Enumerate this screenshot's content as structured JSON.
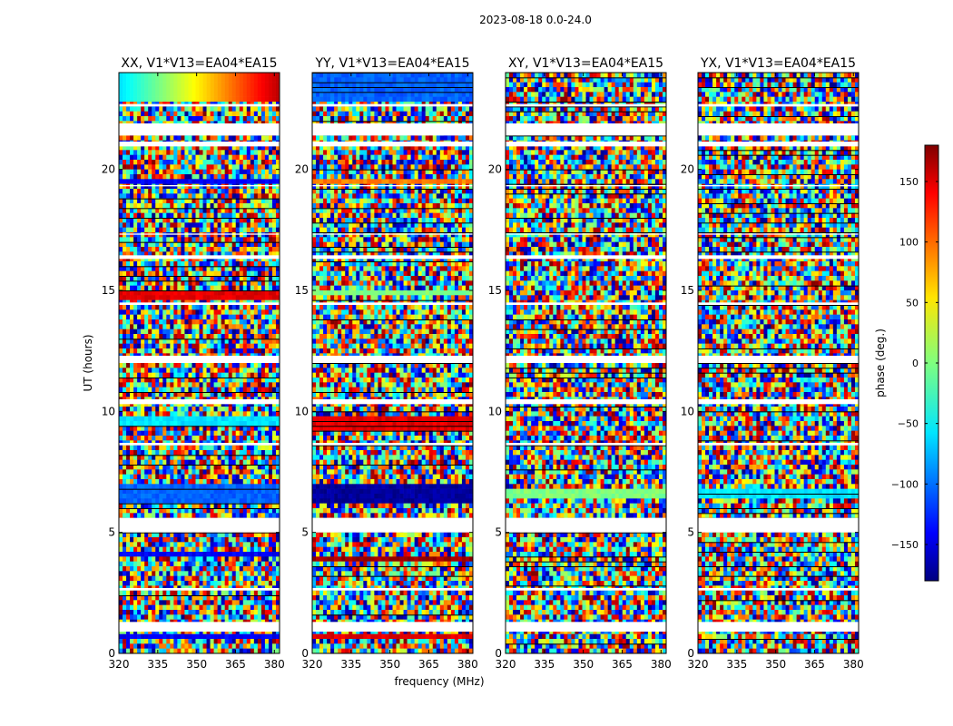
{
  "suptitle": "2023-08-18 0.0-24.0",
  "colors": {
    "background": "#ffffff",
    "missing": "#ffffff",
    "frame": "#000000"
  },
  "chart_data": {
    "type": "heatmap",
    "colormap": "jet",
    "xlabel": "frequency (MHz)",
    "ylabel": "UT (hours)",
    "xlim": [
      320,
      382
    ],
    "ylim": [
      0,
      24
    ],
    "xticks": [
      320,
      335,
      350,
      365,
      380
    ],
    "yticks": [
      0,
      5,
      10,
      15,
      20
    ],
    "colorbar": {
      "label": "phase (deg.)",
      "range": [
        -180,
        180
      ],
      "ticks": [
        150,
        100,
        50,
        0,
        -50,
        -100,
        -150
      ],
      "tick_labels": [
        "150",
        "100",
        "50",
        "0",
        "−50",
        "−100",
        "−150"
      ]
    },
    "panels": [
      {
        "title": "XX, V1*V13=EA04*EA15",
        "coherent_bands_ut": [
          [
            22.9,
            23.9,
            "phase gradient cyan to red"
          ],
          [
            19.4,
            19.6,
            "blue"
          ],
          [
            14.7,
            15.0,
            "red"
          ],
          [
            9.5,
            9.8,
            "cyan"
          ],
          [
            6.3,
            6.9,
            "blue/cyan"
          ],
          [
            3.9,
            4.3,
            "blue"
          ],
          [
            0.6,
            0.8,
            "blue"
          ]
        ]
      },
      {
        "title": "YY, V1*V13=EA04*EA15",
        "coherent_bands_ut": [
          [
            22.9,
            23.9,
            "blue/cyan"
          ],
          [
            19.4,
            19.6,
            "orange"
          ],
          [
            14.8,
            15.0,
            "green"
          ],
          [
            9.2,
            9.7,
            "red"
          ],
          [
            6.3,
            6.9,
            "dark blue"
          ],
          [
            3.7,
            4.1,
            "dark red"
          ],
          [
            0.6,
            0.8,
            "red"
          ]
        ]
      },
      {
        "title": "XY, V1*V13=EA04*EA15",
        "coherent_bands_ut": [
          [
            6.5,
            6.8,
            "green"
          ]
        ]
      },
      {
        "title": "YX, V1*V13=EA04*EA15",
        "coherent_bands_ut": [
          [
            6.5,
            6.8,
            "cyan"
          ]
        ]
      }
    ],
    "missing_ut": [
      [
        0.9,
        1.3
      ],
      [
        2.6,
        2.7
      ],
      [
        5.0,
        5.6
      ],
      [
        8.6,
        8.7
      ],
      [
        10.3,
        10.5
      ],
      [
        12.0,
        12.3
      ],
      [
        14.4,
        14.5
      ],
      [
        16.3,
        16.45
      ],
      [
        17.3,
        17.35
      ],
      [
        19.3,
        19.35
      ],
      [
        20.95,
        21.15
      ],
      [
        21.4,
        21.9
      ],
      [
        22.6,
        22.7
      ]
    ]
  }
}
